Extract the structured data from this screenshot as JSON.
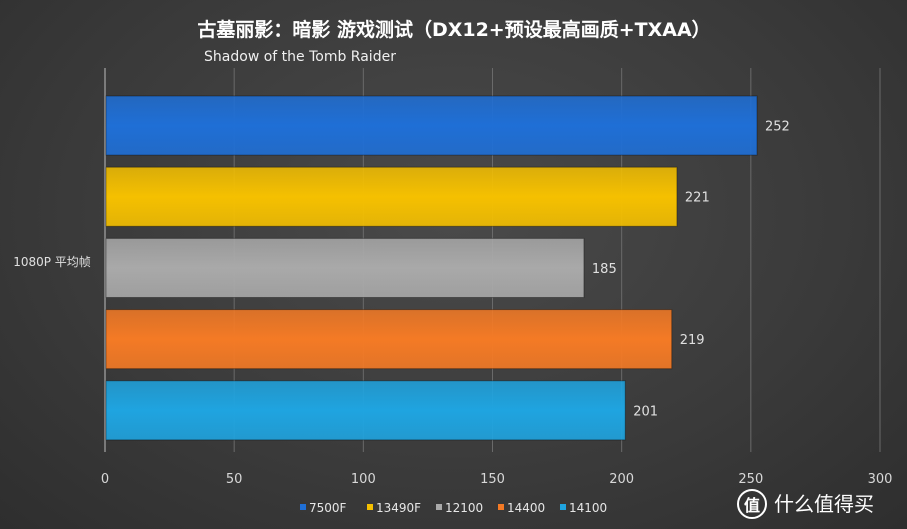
{
  "chart_data": {
    "type": "bar",
    "orientation": "horizontal",
    "title": "古墓丽影：暗影 游戏测试（DX12+预设最高画质+TXAA）",
    "subtitle": "Shadow of the Tomb Raider",
    "categories": [
      "1080P 平均帧"
    ],
    "series": [
      {
        "name": "7500F",
        "values": [
          252
        ],
        "color": "#1f6fd6"
      },
      {
        "name": "13490F",
        "values": [
          221
        ],
        "color": "#f5c000"
      },
      {
        "name": "12100",
        "values": [
          185
        ],
        "color": "#a9a9a9"
      },
      {
        "name": "14400",
        "values": [
          219
        ],
        "color": "#f47a25"
      },
      {
        "name": "14100",
        "values": [
          201
        ],
        "color": "#1fa4e0"
      }
    ],
    "xlim": [
      0,
      300
    ],
    "xticks": [
      0,
      50,
      100,
      150,
      200,
      250,
      300
    ],
    "grid": true,
    "legend_position": "bottom"
  },
  "watermark": {
    "icon": "zhi-logo-icon",
    "text": "什么值得买"
  }
}
